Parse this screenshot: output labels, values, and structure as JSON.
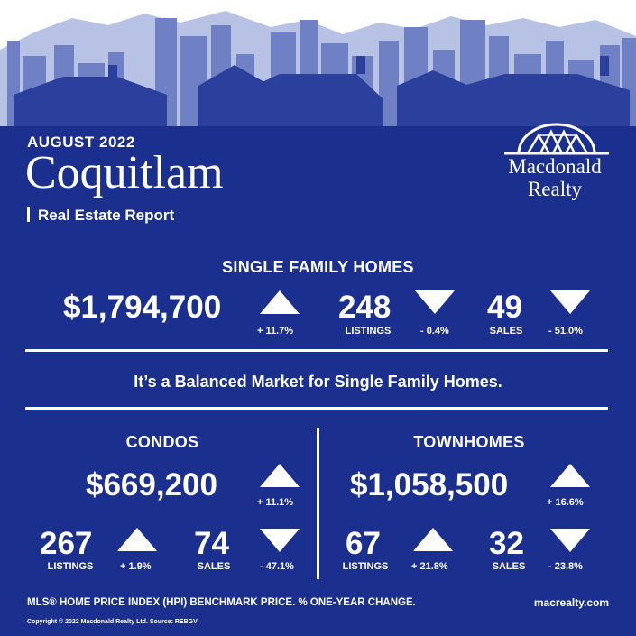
{
  "header": {
    "month": "AUGUST 2022",
    "city": "Coquitlam",
    "subtitle": "Real Estate Report"
  },
  "brand": {
    "name_line1": "Macdonald",
    "name_line2": "Realty",
    "website": "macrealty.com"
  },
  "single_family": {
    "title": "SINGLE FAMILY HOMES",
    "price": "$1,794,700",
    "price_direction": "up",
    "price_change": "+ 11.7%",
    "listings": "248",
    "listings_label": "LISTINGS",
    "listings_direction": "down",
    "listings_change": "- 0.4%",
    "sales": "49",
    "sales_label": "SALES",
    "sales_direction": "down",
    "sales_change": "- 51.0%"
  },
  "market_statement": "It’s a Balanced Market for Single Family Homes.",
  "condos": {
    "title": "CONDOS",
    "price": "$669,200",
    "price_direction": "up",
    "price_change": "+ 11.1%",
    "listings": "267",
    "listings_label": "LISTINGS",
    "listings_direction": "up",
    "listings_change": "+ 1.9%",
    "sales": "74",
    "sales_label": "SALES",
    "sales_direction": "down",
    "sales_change": "- 47.1%"
  },
  "townhomes": {
    "title": "TOWNHOMES",
    "price": "$1,058,500",
    "price_direction": "up",
    "price_change": "+ 16.6%",
    "listings": "67",
    "listings_label": "LISTINGS",
    "listings_direction": "up",
    "listings_change": "+ 21.8%",
    "sales": "32",
    "sales_label": "SALES",
    "sales_direction": "down",
    "sales_change": "- 23.8%"
  },
  "footer": {
    "note": "MLS® HOME PRICE INDEX (HPI) BENCHMARK PRICE.  % ONE-YEAR CHANGE.",
    "copyright": "Copyright © 2022 Macdonald Realty Ltd.  Source: REBGV"
  },
  "colors": {
    "background": "#1b2f8f",
    "mountain": "#b8c2e4",
    "building": "#6f80c4",
    "house": "#2b3f9c",
    "text": "#ffffff"
  }
}
